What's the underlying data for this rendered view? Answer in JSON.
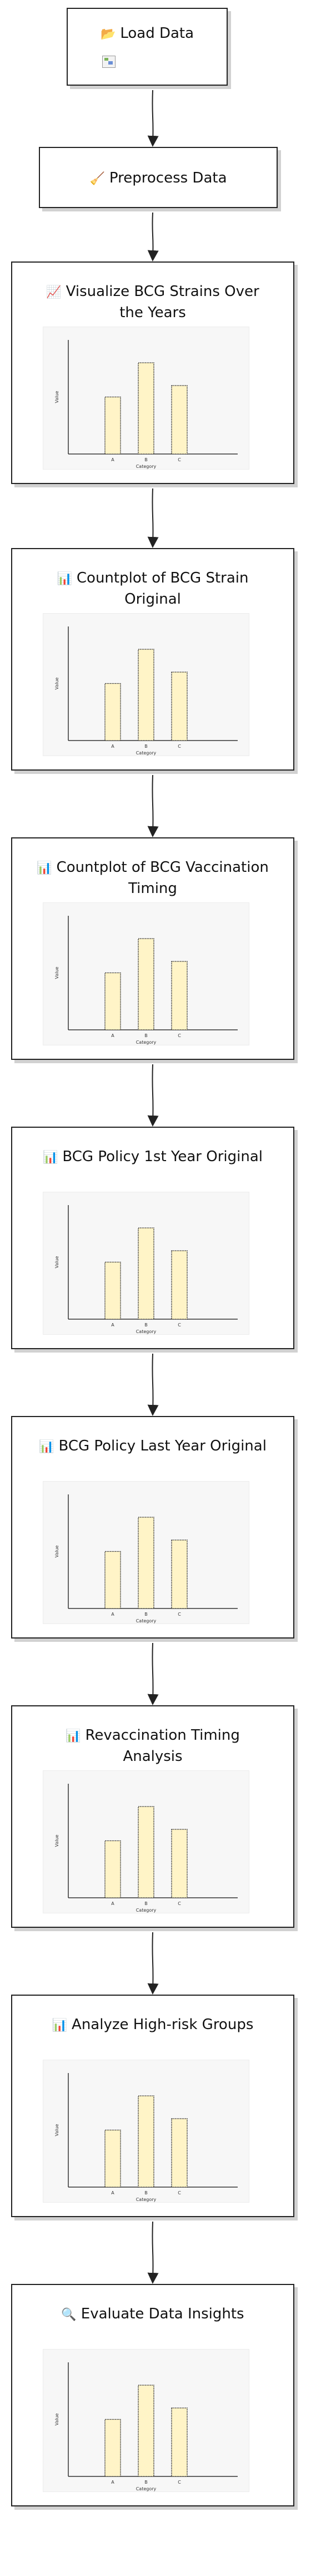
{
  "nodes": [
    {
      "icon": "📂",
      "icon_name": "folder-icon",
      "title": "Load Data"
    },
    {
      "icon": "🧹",
      "icon_name": "broom-icon",
      "title": "Preprocess Data"
    },
    {
      "icon": "📈",
      "icon_name": "chart-increasing-icon",
      "title": "Visualize BCG Strains Over the Years"
    },
    {
      "icon": "📊",
      "icon_name": "bar-chart-icon",
      "title": "Countplot of BCG Strain Original"
    },
    {
      "icon": "📊",
      "icon_name": "bar-chart-icon",
      "title": "Countplot of BCG Vaccination Timing"
    },
    {
      "icon": "📊",
      "icon_name": "bar-chart-icon",
      "title": "BCG Policy 1st Year Original"
    },
    {
      "icon": "📊",
      "icon_name": "bar-chart-icon",
      "title": "BCG Policy Last Year Original"
    },
    {
      "icon": "📊",
      "icon_name": "bar-chart-icon",
      "title": "Revaccination Timing Analysis"
    },
    {
      "icon": "📊",
      "icon_name": "bar-chart-icon",
      "title": "Analyze High-risk Groups"
    },
    {
      "icon": "🔍",
      "icon_name": "magnifier-icon",
      "title": "Evaluate Data Insights"
    }
  ],
  "chart_data": [
    {
      "type": "bar",
      "categories": [
        "A",
        "B",
        "C"
      ],
      "values": [
        5,
        8,
        6
      ],
      "xlabel": "Category",
      "ylabel": "Value",
      "ylim": [
        0,
        10
      ]
    },
    {
      "type": "bar",
      "categories": [
        "A",
        "B",
        "C"
      ],
      "values": [
        5,
        8,
        6
      ],
      "xlabel": "Category",
      "ylabel": "Value",
      "ylim": [
        0,
        10
      ]
    },
    {
      "type": "bar",
      "categories": [
        "A",
        "B",
        "C"
      ],
      "values": [
        5,
        8,
        6
      ],
      "xlabel": "Category",
      "ylabel": "Value",
      "ylim": [
        0,
        10
      ]
    },
    {
      "type": "bar",
      "categories": [
        "A",
        "B",
        "C"
      ],
      "values": [
        5,
        8,
        6
      ],
      "xlabel": "Category",
      "ylabel": "Value",
      "ylim": [
        0,
        10
      ]
    },
    {
      "type": "bar",
      "categories": [
        "A",
        "B",
        "C"
      ],
      "values": [
        5,
        8,
        6
      ],
      "xlabel": "Category",
      "ylabel": "Value",
      "ylim": [
        0,
        10
      ]
    },
    {
      "type": "bar",
      "categories": [
        "A",
        "B",
        "C"
      ],
      "values": [
        5,
        8,
        6
      ],
      "xlabel": "Category",
      "ylabel": "Value",
      "ylim": [
        0,
        10
      ]
    },
    {
      "type": "bar",
      "categories": [
        "A",
        "B",
        "C"
      ],
      "values": [
        5,
        8,
        6
      ],
      "xlabel": "Category",
      "ylabel": "Value",
      "ylim": [
        0,
        10
      ]
    },
    {
      "type": "bar",
      "categories": [
        "A",
        "B",
        "C"
      ],
      "values": [
        5,
        8,
        6
      ],
      "xlabel": "Category",
      "ylabel": "Value",
      "ylim": [
        0,
        10
      ]
    }
  ],
  "colors": {
    "bar_fill": "#fff4c7",
    "bar_stroke": "#333333",
    "border": "#222222",
    "chart_background": "#f7f7f7"
  }
}
